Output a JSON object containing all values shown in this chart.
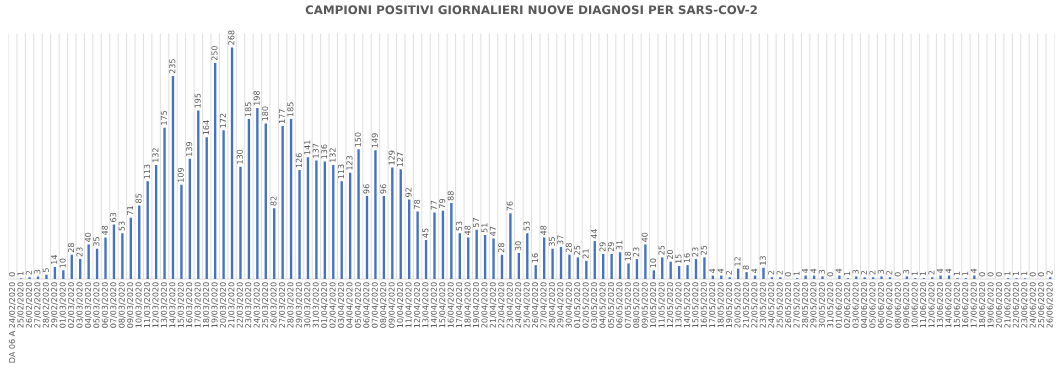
{
  "chart_data": {
    "type": "bar",
    "title": "CAMPIONI POSITIVI GIORNALIERI NUOVE DIAGNOSI PER SARS-COV-2",
    "categories": [
      "DA 06 A 24/02/2020",
      "25/02/2020",
      "26/02/2020",
      "27/02/2020",
      "28/02/2020",
      "29/02/2020",
      "01/03/2020",
      "02/03/2020",
      "03/03/2020",
      "04/03/2020",
      "05/03/2020",
      "06/03/2020",
      "07/03/2020",
      "08/03/2020",
      "09/03/2020",
      "10/03/2020",
      "11/03/2020",
      "12/03/2020",
      "13/03/2020",
      "14/03/2020",
      "15/03/2020",
      "16/03/2020",
      "17/03/2020",
      "18/03/2020",
      "19/03/2020",
      "20/03/2020",
      "21/03/2020",
      "22/03/2020",
      "23/03/2020",
      "24/03/2020",
      "25/03/2020",
      "26/03/2020",
      "27/03/2020",
      "28/03/2020",
      "29/03/2020",
      "30/03/2020",
      "31/03/2020",
      "01/04/2020",
      "02/04/2020",
      "03/04/2020",
      "04/04/2020",
      "05/04/2020",
      "06/04/2020",
      "07/04/2020",
      "08/04/2020",
      "09/04/2020",
      "10/04/2020",
      "11/04/2020",
      "12/04/2020",
      "13/04/2020",
      "14/04/2020",
      "15/04/2020",
      "16/04/2020",
      "17/04/2020",
      "18/04/2020",
      "19/04/2020",
      "20/04/2020",
      "21/04/2020",
      "22/04/2020",
      "23/04/2020",
      "24/04/2020",
      "25/04/2020",
      "26/04/2020",
      "27/04/2020",
      "28/04/2020",
      "29/04/2020",
      "30/04/2020",
      "01/05/2020",
      "02/05/2020",
      "03/05/2020",
      "04/05/2020",
      "05/05/2020",
      "06/05/2020",
      "07/05/2020",
      "08/05/2020",
      "09/05/2020",
      "10/05/2020",
      "11/05/2020",
      "12/05/2020",
      "13/05/2020",
      "14/05/2020",
      "15/05/2020",
      "16/05/2020",
      "17/05/2020",
      "18/05/2020",
      "19/05/2020",
      "20/05/2020",
      "21/05/2020",
      "22/05/2020",
      "23/05/2020",
      "24/05/2020",
      "25/05/2020",
      "26/05/2020",
      "27/05/2020",
      "28/05/2020",
      "29/05/2020",
      "30/05/2020",
      "31/05/2020",
      "01/06/2020",
      "02/06/2020",
      "03/06/2020",
      "04/06/2020",
      "05/06/2020",
      "06/06/2020",
      "07/06/2020",
      "08/06/2020",
      "09/06/2020",
      "10/06/2020",
      "11/06/2020",
      "12/06/2020",
      "13/06/2020",
      "14/06/2020",
      "15/06/2020",
      "16/06/2020",
      "17/06/2020",
      "18/06/2020",
      "19/06/2020",
      "20/06/2020",
      "21/06/2020",
      "22/06/2020",
      "23/06/2020",
      "24/06/2020",
      "25/06/2020",
      "26/06/2020"
    ],
    "values": [
      0,
      1,
      2,
      3,
      5,
      14,
      10,
      28,
      23,
      40,
      35,
      48,
      63,
      53,
      71,
      85,
      113,
      132,
      175,
      235,
      109,
      139,
      195,
      164,
      250,
      172,
      268,
      130,
      185,
      198,
      180,
      82,
      177,
      185,
      126,
      141,
      137,
      136,
      132,
      113,
      123,
      150,
      96,
      149,
      96,
      129,
      127,
      92,
      78,
      45,
      77,
      79,
      88,
      53,
      48,
      57,
      51,
      47,
      28,
      76,
      30,
      53,
      16,
      48,
      35,
      37,
      28,
      25,
      21,
      44,
      29,
      29,
      31,
      18,
      23,
      40,
      10,
      25,
      20,
      15,
      16,
      23,
      25,
      4,
      4,
      2,
      12,
      8,
      4,
      13,
      2,
      2,
      0,
      1,
      4,
      4,
      3,
      0,
      4,
      1,
      3,
      2,
      2,
      3,
      2,
      0,
      3,
      1,
      1,
      2,
      4,
      4,
      1,
      1,
      4,
      0,
      0,
      0,
      1,
      1,
      1,
      0,
      0,
      2
    ],
    "color": "#4472c4",
    "data_labels": true,
    "grid": "x",
    "legend": false
  }
}
